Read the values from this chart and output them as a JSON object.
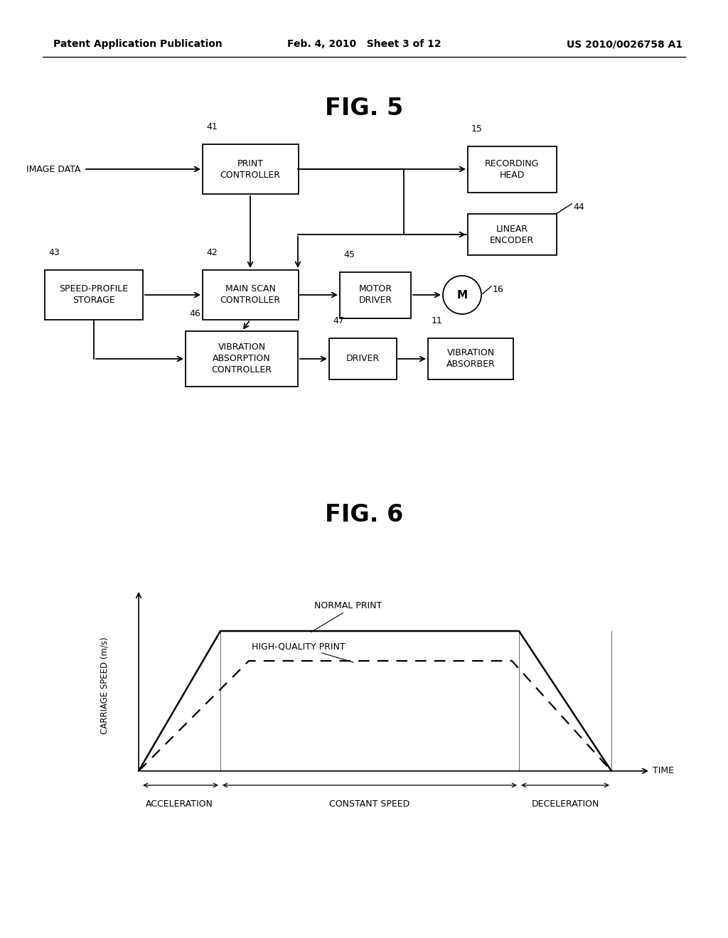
{
  "bg_color": "#ffffff",
  "header_left": "Patent Application Publication",
  "header_mid": "Feb. 4, 2010   Sheet 3 of 12",
  "header_right": "US 2010/0026758 A1",
  "fig5_title": "FIG. 5",
  "fig6_title": "FIG. 6",
  "normal_print_label": "NORMAL PRINT",
  "high_quality_label": "HIGH-QUALITY PRINT",
  "time_label": "TIME",
  "speed_label": "CARRIAGE SPEED (m/s)",
  "accel_label": "ACCELERATION",
  "const_label": "CONSTANT SPEED",
  "decel_label": "DECELERATION",
  "image_data_label": "IMAGE DATA"
}
